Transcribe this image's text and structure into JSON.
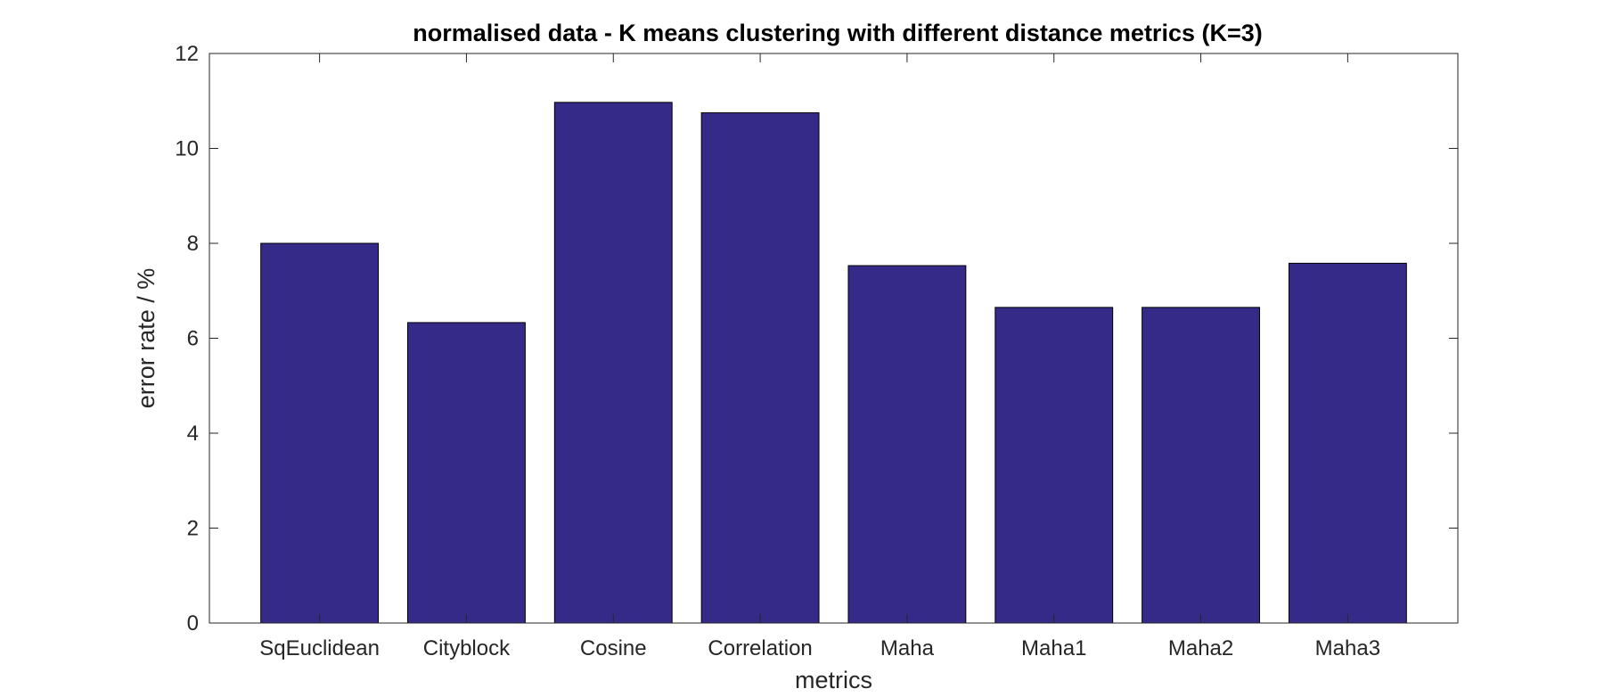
{
  "chart_data": {
    "type": "bar",
    "title": "normalised data - K means clustering with different distance metrics (K=3)",
    "xlabel": "metrics",
    "ylabel": "error rate / %",
    "categories": [
      "SqEuclidean",
      "Cityblock",
      "Cosine",
      "Correlation",
      "Maha",
      "Maha1",
      "Maha2",
      "Maha3"
    ],
    "values": [
      8.0,
      6.33,
      10.97,
      10.75,
      7.53,
      6.65,
      6.65,
      7.58
    ],
    "ylim": [
      0,
      12
    ],
    "yticks": [
      "0",
      "2",
      "4",
      "6",
      "8",
      "10",
      "12"
    ],
    "grid": false,
    "bar_color": "#352a87",
    "edge_color": "#000000"
  }
}
